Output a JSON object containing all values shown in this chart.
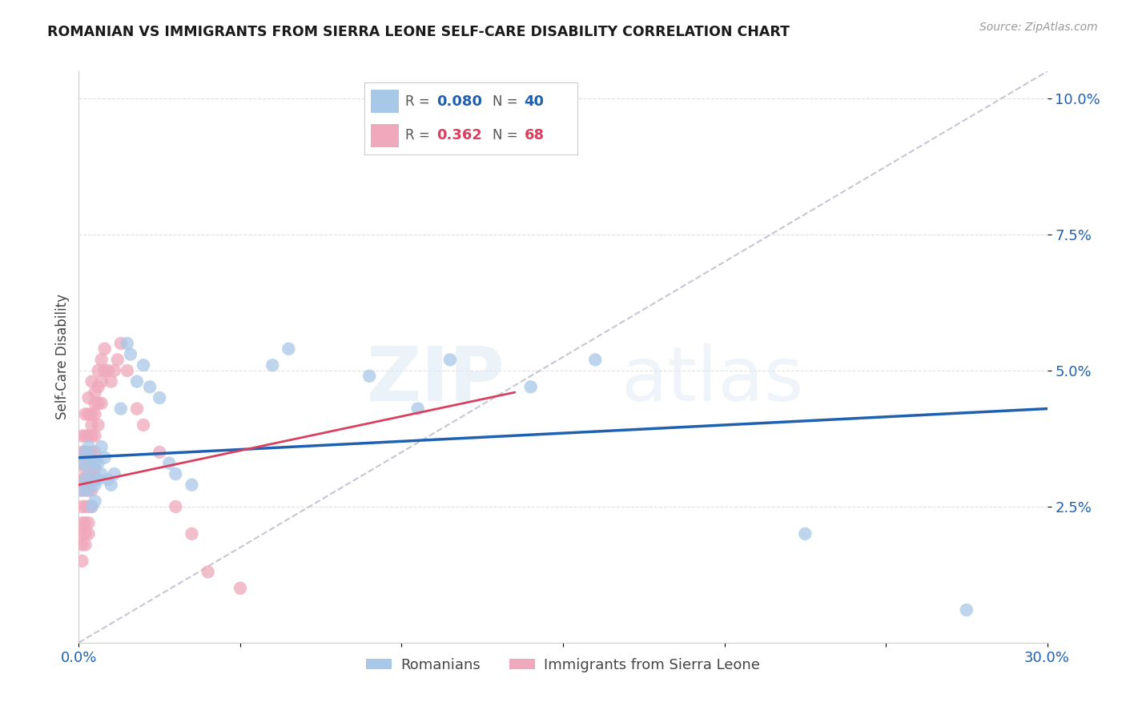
{
  "title": "ROMANIAN VS IMMIGRANTS FROM SIERRA LEONE SELF-CARE DISABILITY CORRELATION CHART",
  "source": "Source: ZipAtlas.com",
  "ylabel": "Self-Care Disability",
  "xlim": [
    0.0,
    0.3
  ],
  "ylim": [
    0.0,
    0.105
  ],
  "ytick_vals": [
    0.025,
    0.05,
    0.075,
    0.1
  ],
  "ytick_labels": [
    "2.5%",
    "5.0%",
    "7.5%",
    "10.0%"
  ],
  "blue_color": "#a8c8e8",
  "pink_color": "#f0a8bc",
  "blue_line_color": "#2060b0",
  "pink_line_color": "#d84060",
  "dashed_line_color": "#c0c0d0",
  "legend_blue_R": "0.080",
  "legend_blue_N": "40",
  "legend_pink_R": "0.362",
  "legend_pink_N": "68",
  "blue_scatter_x": [
    0.001,
    0.001,
    0.002,
    0.002,
    0.003,
    0.003,
    0.003,
    0.004,
    0.004,
    0.004,
    0.005,
    0.005,
    0.005,
    0.006,
    0.006,
    0.007,
    0.007,
    0.008,
    0.009,
    0.01,
    0.011,
    0.013,
    0.015,
    0.016,
    0.018,
    0.02,
    0.022,
    0.025,
    0.028,
    0.03,
    0.035,
    0.06,
    0.065,
    0.09,
    0.105,
    0.115,
    0.14,
    0.16,
    0.225,
    0.275
  ],
  "blue_scatter_y": [
    0.033,
    0.028,
    0.035,
    0.03,
    0.032,
    0.036,
    0.028,
    0.03,
    0.034,
    0.025,
    0.033,
    0.029,
    0.026,
    0.03,
    0.033,
    0.031,
    0.036,
    0.034,
    0.03,
    0.029,
    0.031,
    0.043,
    0.055,
    0.053,
    0.048,
    0.051,
    0.047,
    0.045,
    0.033,
    0.031,
    0.029,
    0.051,
    0.054,
    0.049,
    0.043,
    0.052,
    0.047,
    0.052,
    0.02,
    0.006
  ],
  "pink_scatter_x": [
    0.001,
    0.001,
    0.001,
    0.001,
    0.001,
    0.001,
    0.001,
    0.001,
    0.001,
    0.001,
    0.002,
    0.002,
    0.002,
    0.002,
    0.002,
    0.002,
    0.002,
    0.002,
    0.002,
    0.002,
    0.003,
    0.003,
    0.003,
    0.003,
    0.003,
    0.003,
    0.003,
    0.003,
    0.003,
    0.003,
    0.004,
    0.004,
    0.004,
    0.004,
    0.004,
    0.004,
    0.004,
    0.004,
    0.004,
    0.005,
    0.005,
    0.005,
    0.005,
    0.005,
    0.005,
    0.005,
    0.006,
    0.006,
    0.006,
    0.006,
    0.007,
    0.007,
    0.007,
    0.008,
    0.008,
    0.009,
    0.01,
    0.011,
    0.012,
    0.013,
    0.015,
    0.018,
    0.02,
    0.025,
    0.03,
    0.035,
    0.04,
    0.05
  ],
  "pink_scatter_y": [
    0.033,
    0.03,
    0.028,
    0.025,
    0.022,
    0.02,
    0.018,
    0.015,
    0.038,
    0.035,
    0.035,
    0.032,
    0.03,
    0.028,
    0.025,
    0.022,
    0.02,
    0.018,
    0.042,
    0.038,
    0.038,
    0.035,
    0.033,
    0.03,
    0.028,
    0.025,
    0.022,
    0.02,
    0.045,
    0.042,
    0.042,
    0.04,
    0.038,
    0.035,
    0.032,
    0.03,
    0.028,
    0.025,
    0.048,
    0.046,
    0.044,
    0.042,
    0.038,
    0.035,
    0.032,
    0.03,
    0.05,
    0.047,
    0.044,
    0.04,
    0.052,
    0.048,
    0.044,
    0.054,
    0.05,
    0.05,
    0.048,
    0.05,
    0.052,
    0.055,
    0.05,
    0.043,
    0.04,
    0.035,
    0.025,
    0.02,
    0.013,
    0.01
  ],
  "blue_line_x": [
    0.0,
    0.3
  ],
  "blue_line_y": [
    0.034,
    0.043
  ],
  "pink_line_x": [
    0.0,
    0.135
  ],
  "pink_line_y": [
    0.029,
    0.046
  ],
  "dash_line_x": [
    0.0,
    0.3
  ],
  "dash_line_y": [
    0.0,
    0.105
  ],
  "watermark_zip": "ZIP",
  "watermark_atlas": "atlas",
  "background_color": "#ffffff"
}
